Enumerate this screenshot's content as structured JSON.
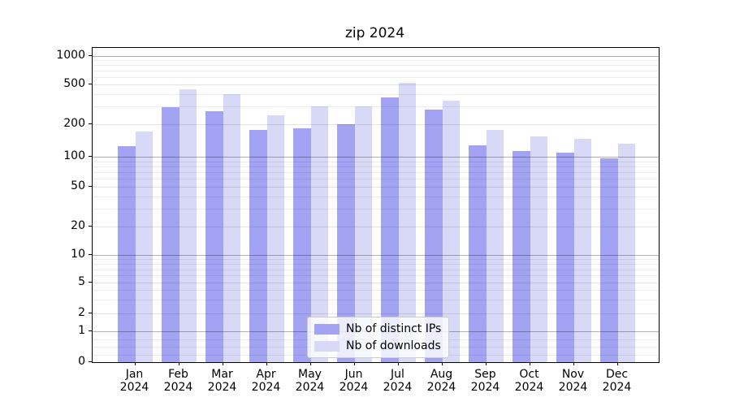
{
  "chart_data": {
    "type": "bar",
    "title": "zip 2024",
    "months": [
      "Jan",
      "Feb",
      "Mar",
      "Apr",
      "May",
      "Jun",
      "Jul",
      "Aug",
      "Sep",
      "Oct",
      "Nov",
      "Dec"
    ],
    "year": "2024",
    "series": [
      {
        "name": "Nb of distinct IPs",
        "color": "#a3a3f3",
        "values": [
          125,
          295,
          270,
          178,
          184,
          200,
          370,
          280,
          128,
          113,
          110,
          97
        ]
      },
      {
        "name": "Nb of downloads",
        "color": "#d8d8f7",
        "values": [
          170,
          450,
          400,
          244,
          300,
          300,
          520,
          345,
          177,
          155,
          147,
          131
        ]
      }
    ],
    "yscale": "symlog",
    "yticks": [
      0,
      1,
      2,
      5,
      10,
      20,
      50,
      100,
      200,
      500,
      1000
    ],
    "ylim": [
      0,
      1000
    ],
    "xlabel": "",
    "ylabel": "",
    "grid": true,
    "legend_position": "lower center"
  }
}
